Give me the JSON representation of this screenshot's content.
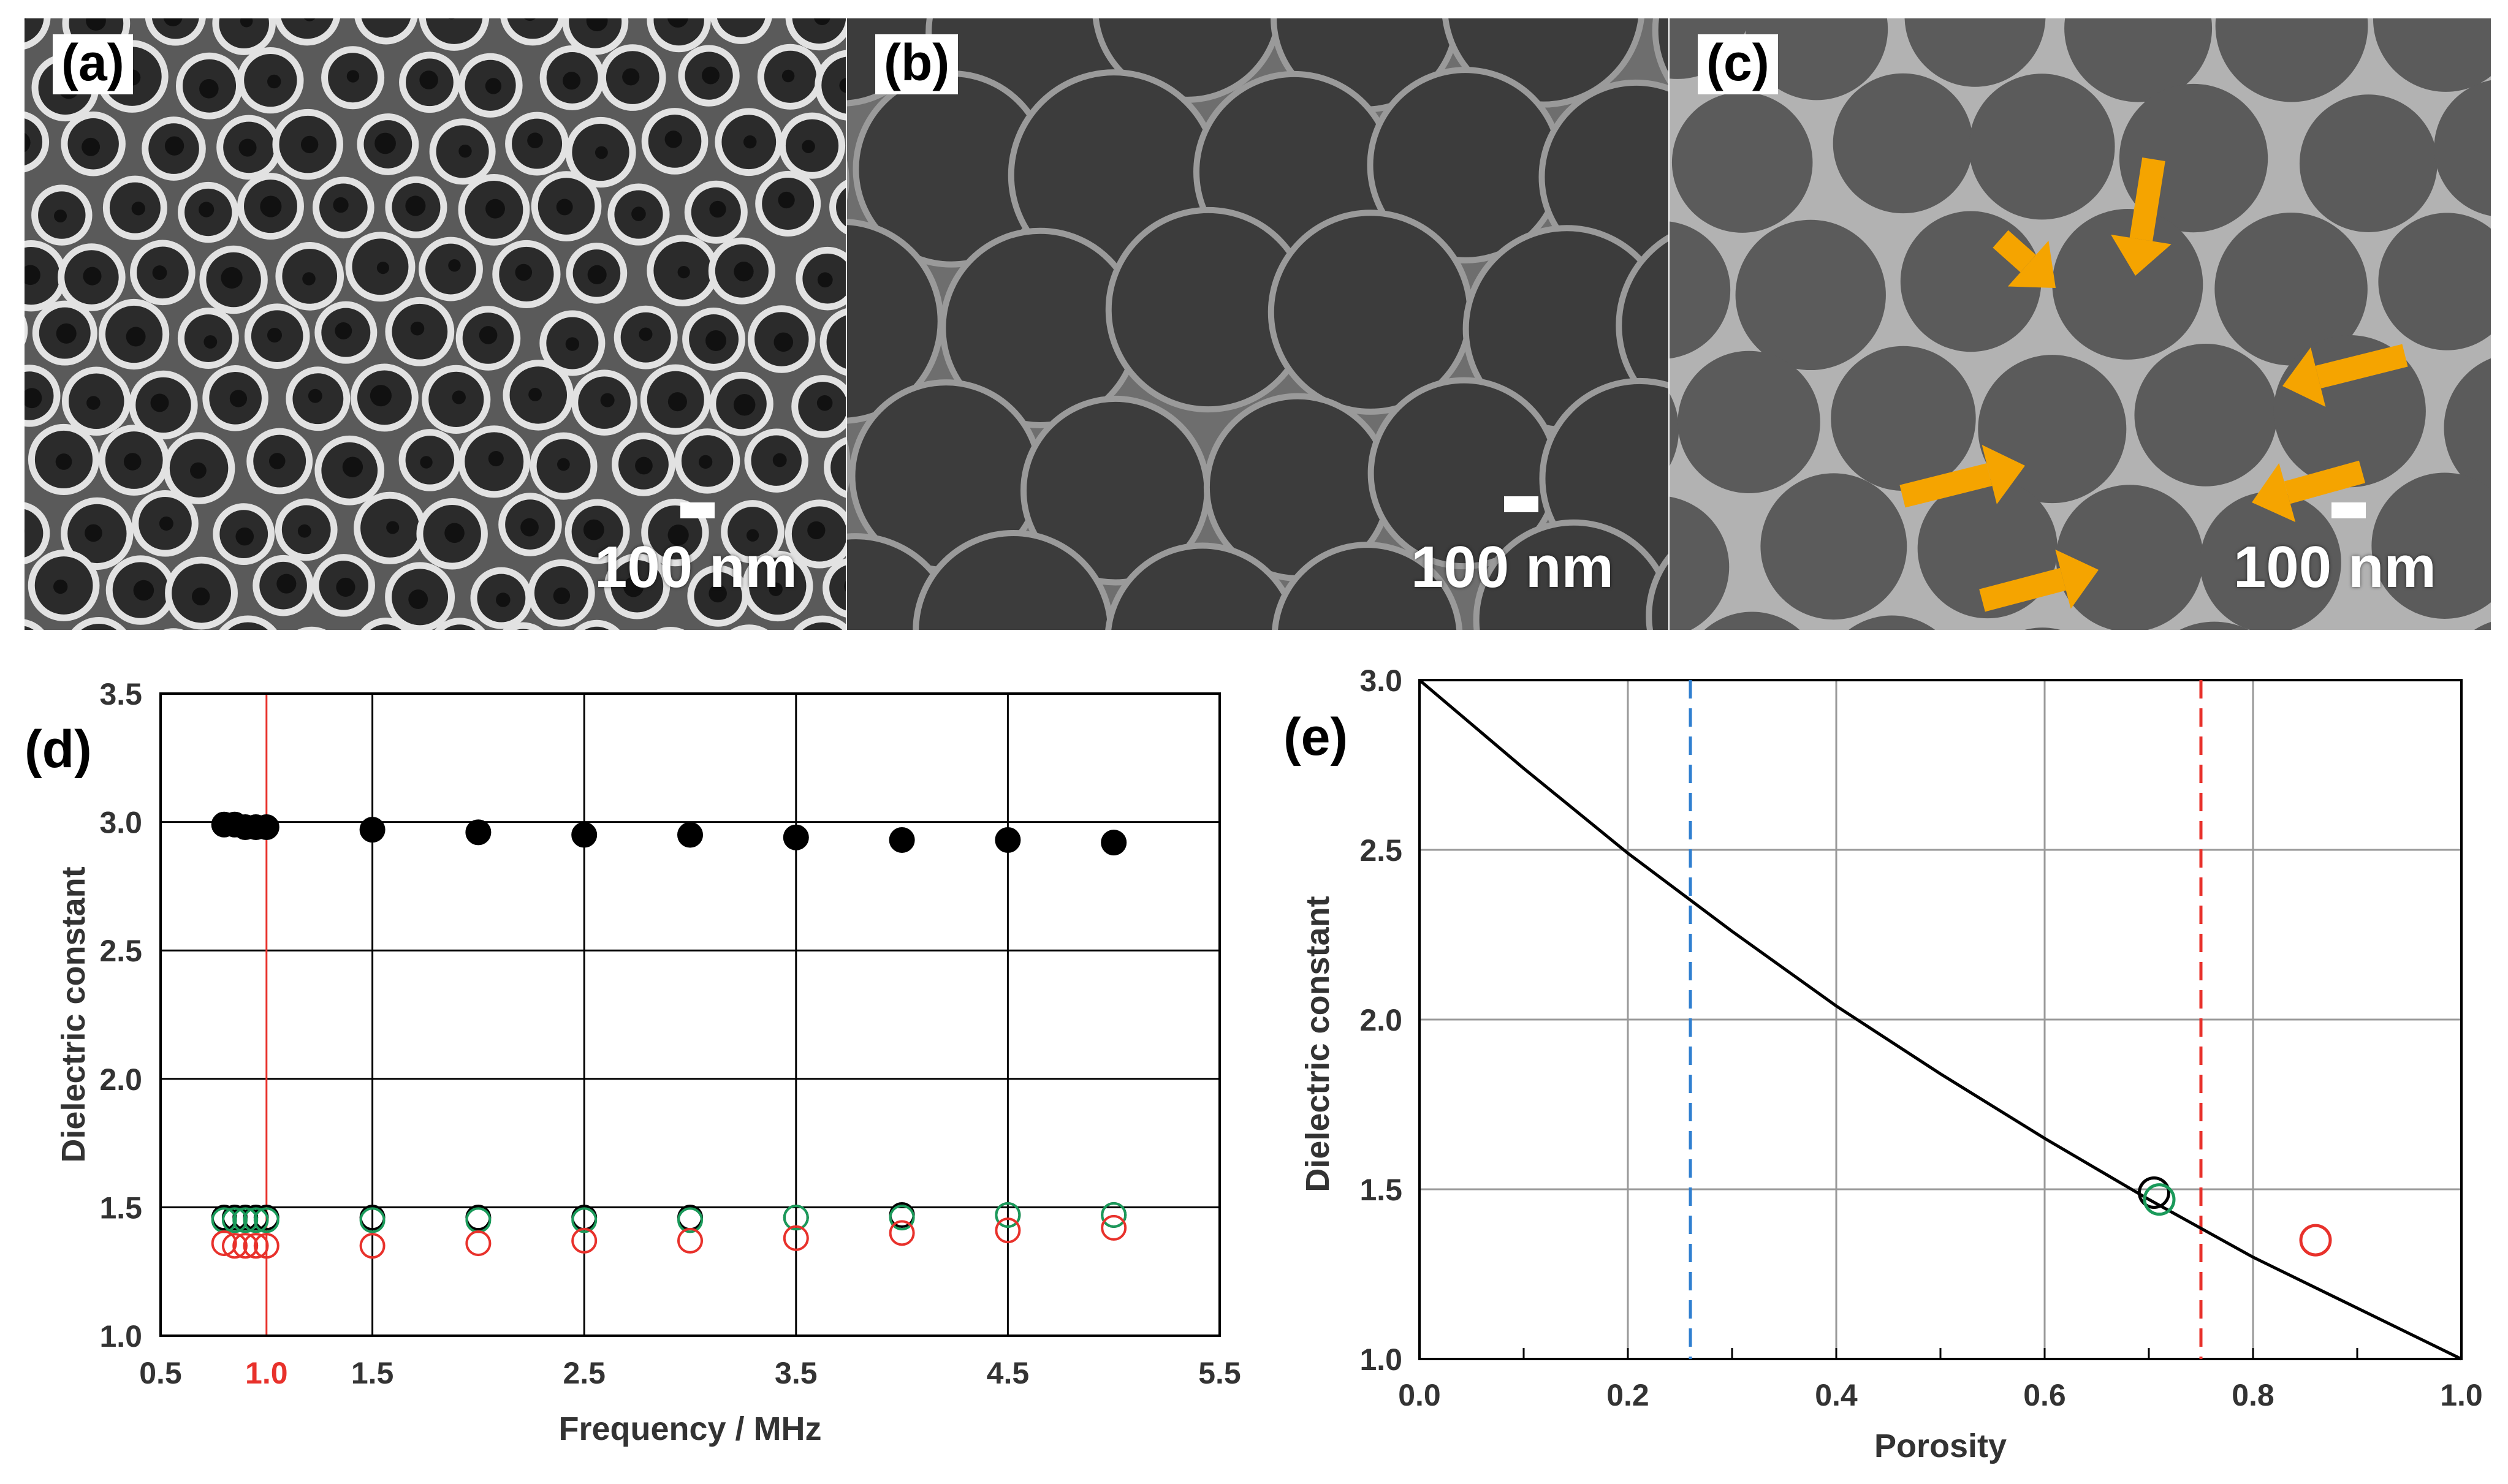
{
  "panels": {
    "a": {
      "tag": "(a)",
      "scale_label": "100 nm"
    },
    "b": {
      "tag": "(b)",
      "scale_label": "100 nm"
    },
    "c": {
      "tag": "(c)",
      "scale_label": "100 nm"
    }
  },
  "chart_data": [
    {
      "panel_tag": "(d)",
      "type": "scatter",
      "xlabel": "Frequency / MHz",
      "ylabel": "Dielectric constant",
      "xlim": [
        0.5,
        5.5
      ],
      "ylim": [
        1.0,
        3.5
      ],
      "xticks": [
        "0.5",
        "1.0",
        "1.5",
        "2.5",
        "3.5",
        "4.5",
        "5.5"
      ],
      "xtick_values": [
        0.5,
        1.0,
        1.5,
        2.5,
        3.5,
        4.5,
        5.5
      ],
      "yticks": [
        "1.0",
        "1.5",
        "2.0",
        "2.5",
        "3.0",
        "3.5"
      ],
      "ytick_values": [
        1.0,
        1.5,
        2.0,
        2.5,
        3.0,
        3.5
      ],
      "vertical_grid": [
        1.0,
        1.5,
        2.5,
        3.5,
        4.5
      ],
      "grid": true,
      "highlight_x": 1.0,
      "highlight_color": "#e8312b",
      "series": [
        {
          "marker": "filled-circle",
          "color": "#000000",
          "x": [
            0.8,
            0.85,
            0.9,
            0.95,
            1.0,
            1.5,
            2.0,
            2.5,
            3.0,
            3.5,
            4.0,
            4.5,
            5.0
          ],
          "values": [
            2.99,
            2.99,
            2.98,
            2.98,
            2.98,
            2.97,
            2.96,
            2.95,
            2.95,
            2.94,
            2.93,
            2.93,
            2.92
          ]
        },
        {
          "marker": "open-circle",
          "color": "#000000",
          "x": [
            0.8,
            0.85,
            0.9,
            0.95,
            1.0,
            1.5,
            2.0,
            2.5,
            3.0,
            3.5,
            4.0,
            4.5,
            5.0
          ],
          "values": [
            1.46,
            1.46,
            1.46,
            1.46,
            1.46,
            1.46,
            1.46,
            1.46,
            1.46,
            1.46,
            1.47,
            1.47,
            1.47
          ]
        },
        {
          "marker": "open-circle",
          "color": "#1a9a5a",
          "x": [
            0.8,
            0.85,
            0.9,
            0.95,
            1.0,
            1.5,
            2.0,
            2.5,
            3.0,
            3.5,
            4.0,
            4.5,
            5.0
          ],
          "values": [
            1.45,
            1.45,
            1.45,
            1.45,
            1.45,
            1.45,
            1.45,
            1.45,
            1.45,
            1.46,
            1.46,
            1.47,
            1.47
          ]
        },
        {
          "marker": "open-circle",
          "color": "#e8312b",
          "x": [
            0.8,
            0.85,
            0.9,
            0.95,
            1.0,
            1.5,
            2.0,
            2.5,
            3.0,
            3.5,
            4.0,
            4.5,
            5.0
          ],
          "values": [
            1.36,
            1.35,
            1.35,
            1.35,
            1.35,
            1.35,
            1.36,
            1.37,
            1.37,
            1.38,
            1.4,
            1.41,
            1.42
          ]
        }
      ]
    },
    {
      "panel_tag": "(e)",
      "type": "line",
      "xlabel": "Porosity",
      "ylabel": "Dielectric constant",
      "xlim": [
        0.0,
        1.0
      ],
      "ylim": [
        1.0,
        3.0
      ],
      "xticks": [
        "0.0",
        "0.2",
        "0.4",
        "0.6",
        "0.8",
        "1.0"
      ],
      "xtick_values": [
        0.0,
        0.2,
        0.4,
        0.6,
        0.8,
        1.0
      ],
      "yticks": [
        "1.0",
        "1.5",
        "2.0",
        "2.5",
        "3.0"
      ],
      "ytick_values": [
        1.0,
        1.5,
        2.0,
        2.5,
        3.0
      ],
      "minor_x_step": 0.1,
      "grid": true,
      "curve": {
        "color": "#000000",
        "x": [
          0.0,
          0.1,
          0.2,
          0.3,
          0.4,
          0.5,
          0.6,
          0.7,
          0.8,
          0.9,
          1.0
        ],
        "values": [
          3.0,
          2.74,
          2.49,
          2.26,
          2.04,
          1.84,
          1.65,
          1.47,
          1.3,
          1.15,
          1.0
        ]
      },
      "vlines": [
        {
          "x": 0.26,
          "color": "#2f7fd0",
          "style": "dashed"
        },
        {
          "x": 0.75,
          "color": "#e8312b",
          "style": "dashed"
        }
      ],
      "points": [
        {
          "x": 0.705,
          "y": 1.49,
          "color": "#000000",
          "marker": "open-circle"
        },
        {
          "x": 0.71,
          "y": 1.47,
          "color": "#1a9a5a",
          "marker": "open-circle"
        },
        {
          "x": 0.86,
          "y": 1.35,
          "color": "#e8312b",
          "marker": "open-circle"
        }
      ]
    }
  ]
}
